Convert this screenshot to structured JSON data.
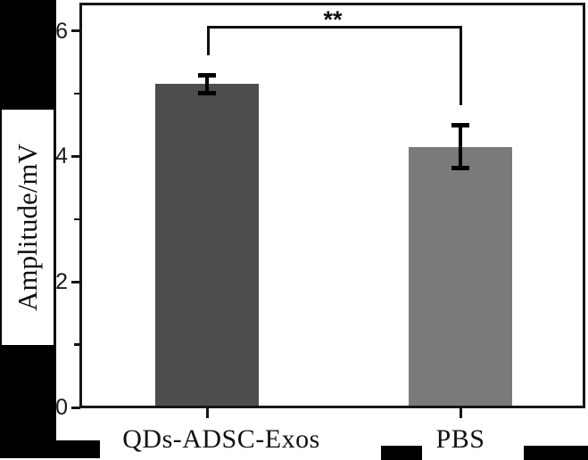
{
  "chart_data": {
    "type": "bar",
    "title": "",
    "ylabel": "Amplitude/mV",
    "xlabel": "",
    "categories": [
      "QDs-ADSC-Exos",
      "PBS"
    ],
    "values": [
      5.15,
      4.15
    ],
    "errors": [
      0.15,
      0.35
    ],
    "bar_colors": [
      "#4d4d4d",
      "#7a7a7a"
    ],
    "ylim": [
      0,
      6.45
    ],
    "ytick_labels": [
      "0",
      "2",
      "4",
      "6"
    ],
    "ytick_values": [
      0,
      2,
      4,
      6
    ],
    "minor_ytick_values": [
      1,
      3,
      5
    ],
    "grid": false,
    "legend": null,
    "error_bars": true,
    "significance": {
      "label": "**",
      "between": [
        "QDs-ADSC-Exos",
        "PBS"
      ]
    }
  },
  "colors": {
    "axis": "#161616",
    "error_bar": "#000000",
    "redaction": "#000000",
    "background": "#ffffff"
  }
}
